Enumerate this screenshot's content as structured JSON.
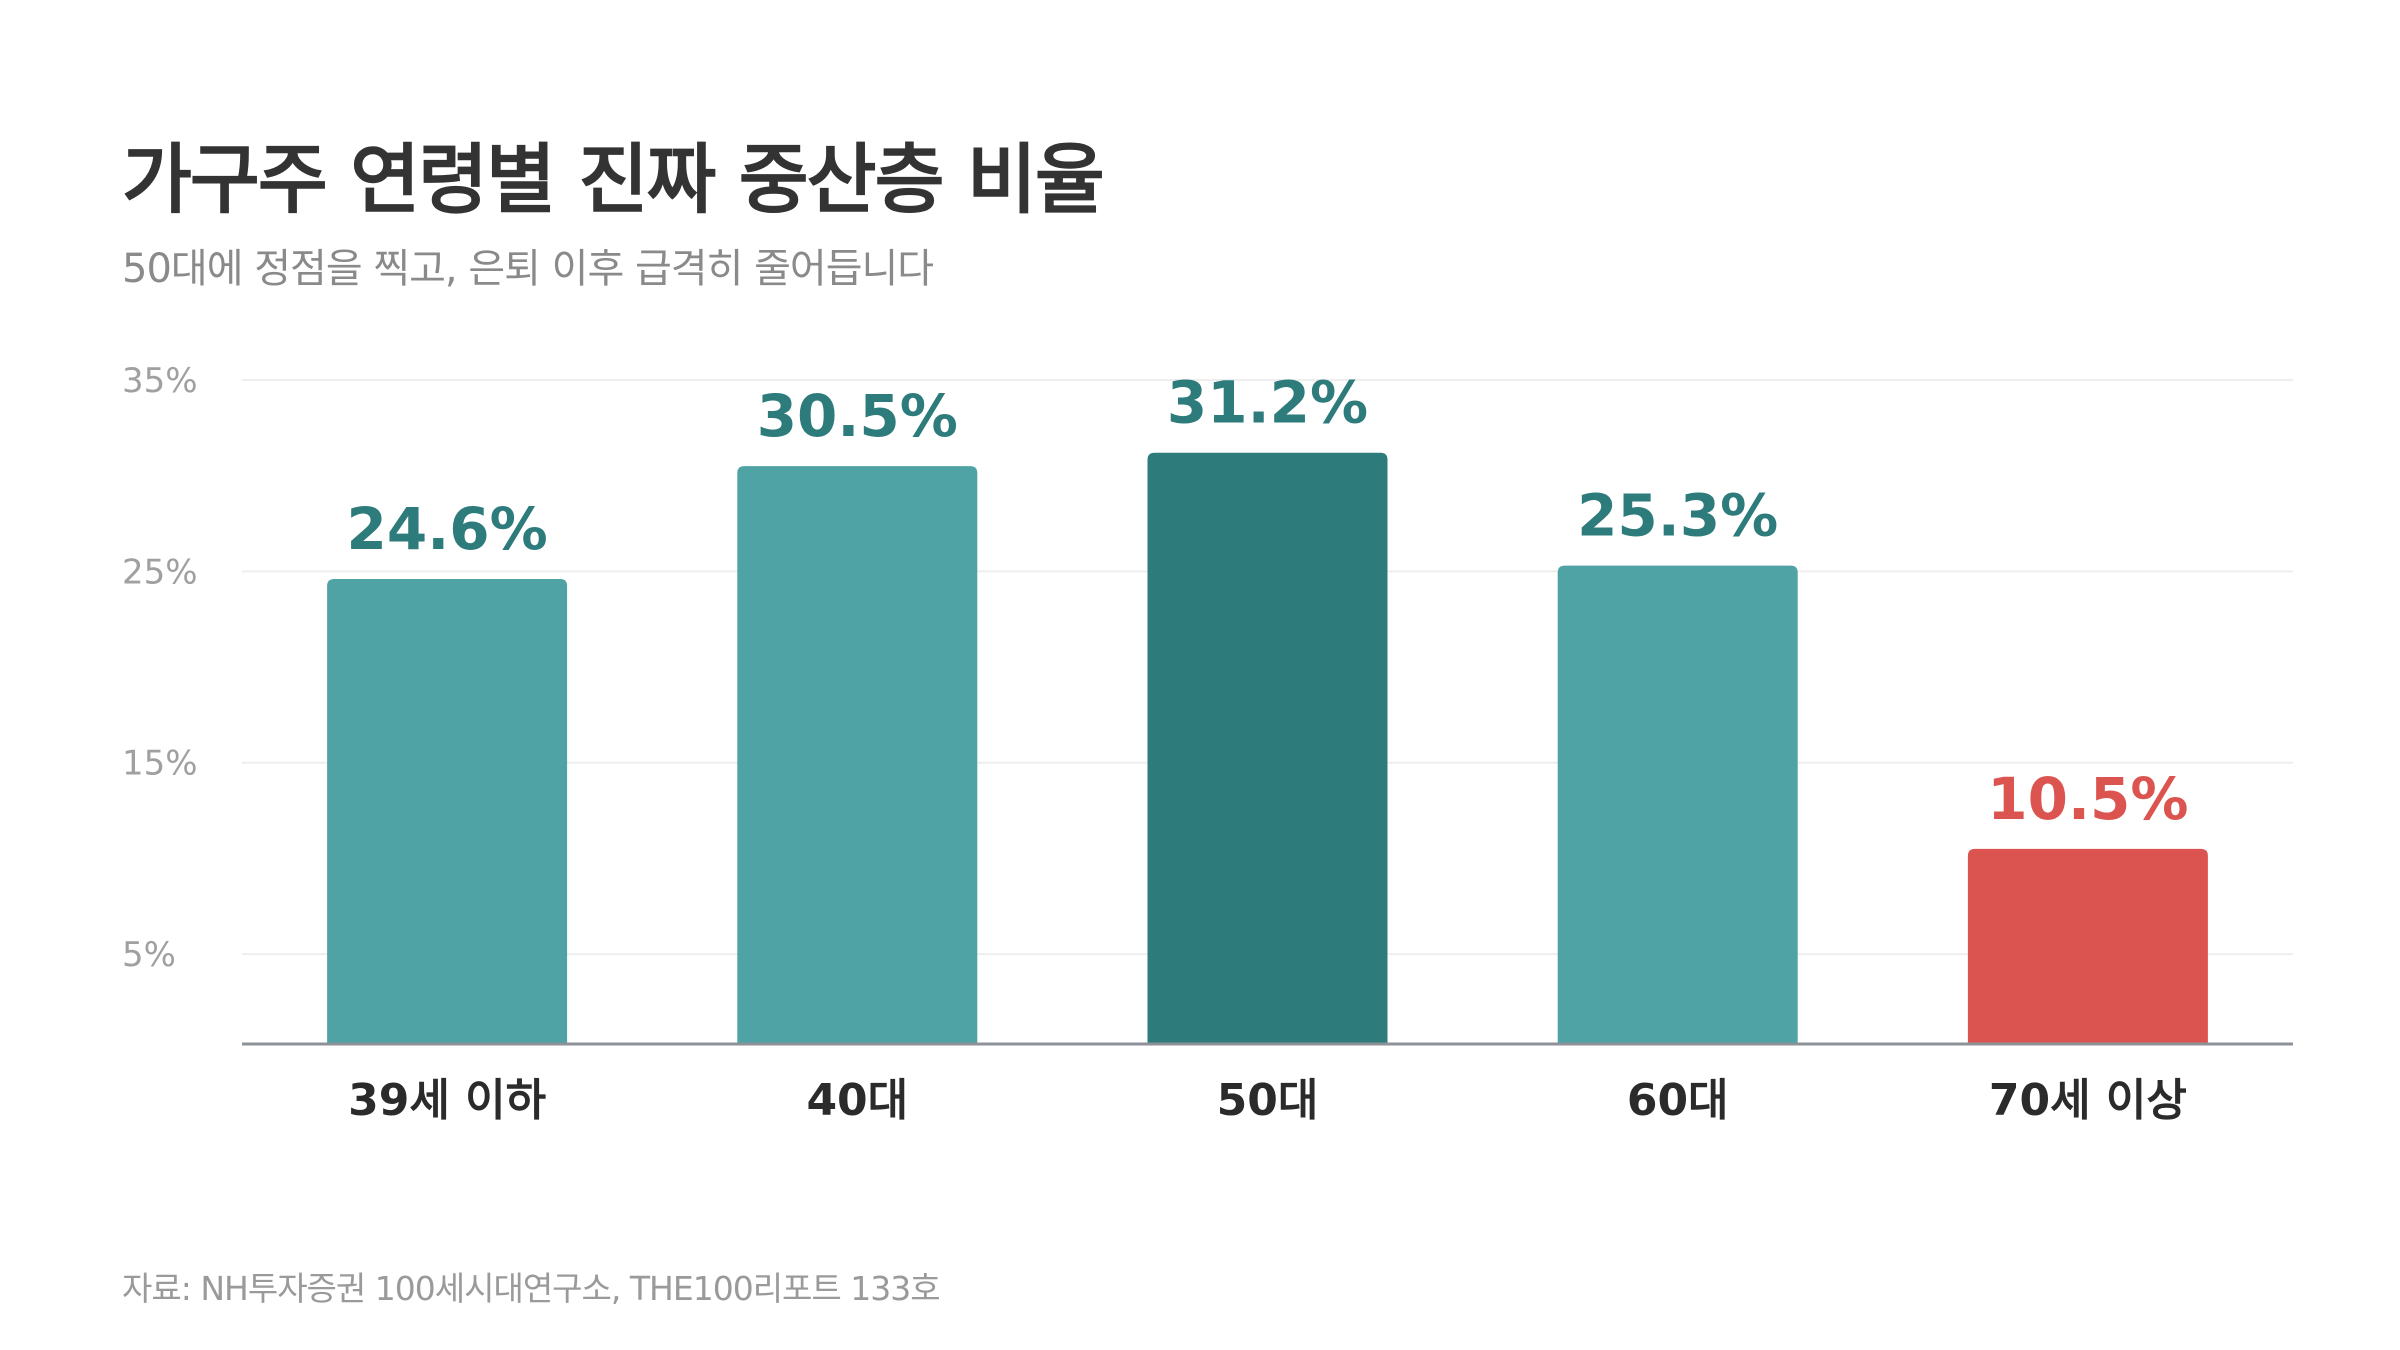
{
  "chart_data": {
    "type": "bar",
    "title": "가구주 연령별 진짜 중산층 비율",
    "subtitle": "50대에 정점을 찍고, 은퇴 이후 급격히 줄어듭니다",
    "categories": [
      "39세 이하",
      "40대",
      "50대",
      "60대",
      "70세 이상"
    ],
    "values": [
      24.6,
      30.5,
      31.2,
      25.3,
      10.5
    ],
    "data_labels": [
      "24.6%",
      "30.5%",
      "31.2%",
      "25.3%",
      "10.5%"
    ],
    "y_ticks": [
      5,
      15,
      25,
      35
    ],
    "y_tick_labels": [
      "5%",
      "15%",
      "25%",
      "35%"
    ],
    "ylim": [
      0.3,
      35
    ],
    "grid": true,
    "legend": "none",
    "bar_colors": [
      "#4fa3a5",
      "#4fa3a5",
      "#2e7b7c",
      "#4fa3a5",
      "#dc544f"
    ],
    "label_colors": [
      "#2e7b7c",
      "#2e7b7c",
      "#2e7b7c",
      "#2e7b7c",
      "#dc544f"
    ],
    "source": "자료: NH투자증권 100세시대연구소, THE100리포트 133호"
  }
}
